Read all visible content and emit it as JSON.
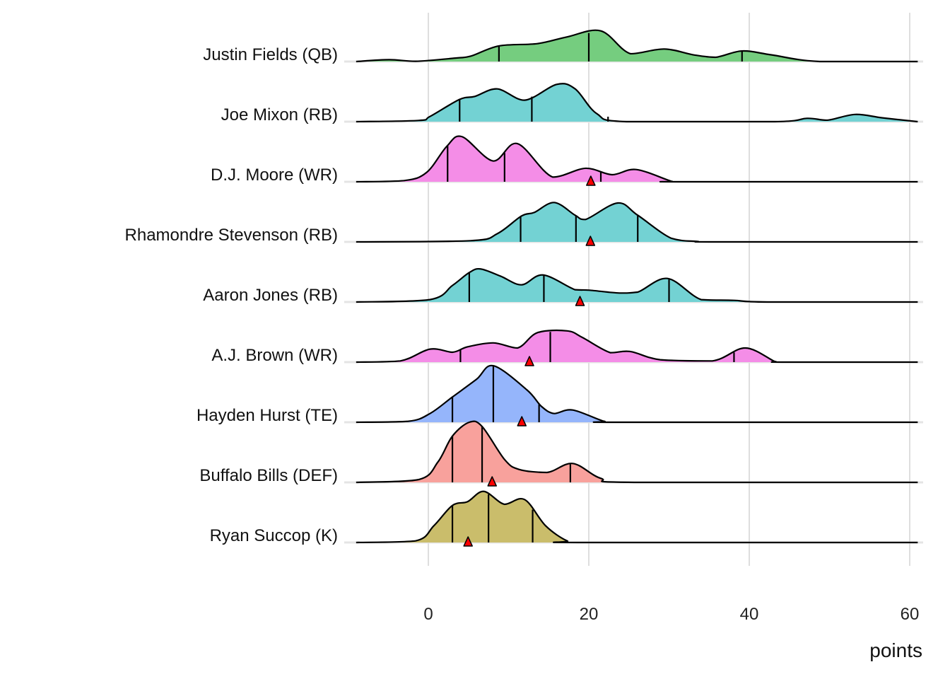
{
  "chart_data": {
    "type": "ridgeline",
    "xlabel": "points",
    "ylabel": "",
    "xlim": [
      -9,
      61
    ],
    "xticks": [
      0,
      20,
      40,
      60
    ],
    "grid": true,
    "legend": "none",
    "marker_color": "#FF0000",
    "series": [
      {
        "name": "Justin Fields (QB)",
        "color": "#75CD7F",
        "density": [
          [
            -9,
            0
          ],
          [
            -4.9,
            0.031
          ],
          [
            -1.6,
            0.004
          ],
          [
            3.5,
            0.059
          ],
          [
            5.3,
            0.09
          ],
          [
            8.8,
            0.26
          ],
          [
            13.6,
            0.298
          ],
          [
            17.3,
            0.41
          ],
          [
            21.5,
            0.51
          ],
          [
            25.2,
            0.13
          ],
          [
            29.4,
            0.208
          ],
          [
            33.1,
            0.11
          ],
          [
            35.8,
            0.071
          ],
          [
            39.1,
            0.176
          ],
          [
            42.8,
            0.11
          ],
          [
            48.8,
            0
          ],
          [
            61,
            0
          ]
        ],
        "quantiles": [
          8.8,
          20.0,
          39.1
        ],
        "marker": null
      },
      {
        "name": "Joe Mixon (RB)",
        "color": "#73D2D3",
        "density": [
          [
            -9,
            0
          ],
          [
            -1.2,
            0.02
          ],
          [
            0.2,
            0.086
          ],
          [
            3.9,
            0.37
          ],
          [
            5.8,
            0.42
          ],
          [
            8.6,
            0.545
          ],
          [
            12.0,
            0.357
          ],
          [
            16.0,
            0.62
          ],
          [
            18.3,
            0.545
          ],
          [
            21.0,
            0.133
          ],
          [
            24.7,
            0
          ],
          [
            43.2,
            0
          ],
          [
            47.2,
            0.055
          ],
          [
            49.7,
            0.024
          ],
          [
            53.2,
            0.12
          ],
          [
            56.6,
            0.063
          ],
          [
            61,
            0
          ]
        ],
        "quantiles": [
          3.9,
          12.9,
          22.4
        ],
        "marker": null
      },
      {
        "name": "D.J. Moore (WR)",
        "color": "#F48DE7",
        "density": [
          [
            -9,
            0
          ],
          [
            -3.0,
            0.02
          ],
          [
            -0.2,
            0.157
          ],
          [
            2.3,
            0.59
          ],
          [
            4.2,
            0.75
          ],
          [
            8.1,
            0.345
          ],
          [
            11.1,
            0.635
          ],
          [
            15.5,
            0.078
          ],
          [
            19.6,
            0.224
          ],
          [
            22.9,
            0.118
          ],
          [
            25.9,
            0.204
          ],
          [
            30.3,
            0.008
          ],
          [
            31.2,
            0
          ],
          [
            61,
            0
          ]
        ],
        "quantiles": [
          2.4,
          9.5,
          21.5
        ],
        "marker": 20.25
      },
      {
        "name": "Rhamondre Stevenson (RB)",
        "color": "#73D2D3",
        "density": [
          [
            -9,
            0
          ],
          [
            5.3,
            0.02
          ],
          [
            8.6,
            0.137
          ],
          [
            11.6,
            0.43
          ],
          [
            13.2,
            0.49
          ],
          [
            15.7,
            0.655
          ],
          [
            18.3,
            0.443
          ],
          [
            19.6,
            0.373
          ],
          [
            23.6,
            0.647
          ],
          [
            26.1,
            0.443
          ],
          [
            30.3,
            0.059
          ],
          [
            33.5,
            0.008
          ],
          [
            35.8,
            0
          ],
          [
            61,
            0
          ]
        ],
        "quantiles": [
          11.5,
          18.4,
          26.1
        ],
        "marker": 20.2
      },
      {
        "name": "Aaron Jones (RB)",
        "color": "#73D2D3",
        "density": [
          [
            -9,
            0
          ],
          [
            0.2,
            0.04
          ],
          [
            3.0,
            0.275
          ],
          [
            5.1,
            0.49
          ],
          [
            6.5,
            0.55
          ],
          [
            9.0,
            0.43
          ],
          [
            11.6,
            0.286
          ],
          [
            14.3,
            0.45
          ],
          [
            18.3,
            0.204
          ],
          [
            20.1,
            0.196
          ],
          [
            23.8,
            0.149
          ],
          [
            26.1,
            0.165
          ],
          [
            29.8,
            0.392
          ],
          [
            34.0,
            0.04
          ],
          [
            38.1,
            0.027
          ],
          [
            42.3,
            0
          ],
          [
            61,
            0
          ]
        ],
        "quantiles": [
          5.1,
          14.4,
          30.0
        ],
        "marker": 18.9
      },
      {
        "name": "A.J. Brown (WR)",
        "color": "#F48DE7",
        "density": [
          [
            -9,
            0
          ],
          [
            -3.5,
            0.02
          ],
          [
            0.2,
            0.216
          ],
          [
            3.0,
            0.165
          ],
          [
            4.9,
            0.255
          ],
          [
            8.1,
            0.32
          ],
          [
            11.1,
            0.235
          ],
          [
            13.6,
            0.49
          ],
          [
            17.3,
            0.52
          ],
          [
            19.2,
            0.41
          ],
          [
            22.7,
            0.157
          ],
          [
            25.2,
            0.176
          ],
          [
            28.9,
            0.04
          ],
          [
            35.4,
            0.02
          ],
          [
            39.5,
            0.235
          ],
          [
            43.2,
            0.01
          ],
          [
            44.2,
            0
          ],
          [
            61,
            0
          ]
        ],
        "quantiles": [
          4.0,
          15.2,
          38.1
        ],
        "marker": 12.6
      },
      {
        "name": "Hayden Hurst (TE)",
        "color": "#95B5FB",
        "density": [
          [
            -9,
            0
          ],
          [
            -2.5,
            0.016
          ],
          [
            0.2,
            0.145
          ],
          [
            3.0,
            0.42
          ],
          [
            6.0,
            0.714
          ],
          [
            8.1,
            0.94
          ],
          [
            12.3,
            0.537
          ],
          [
            14.1,
            0.263
          ],
          [
            15.7,
            0.145
          ],
          [
            18.0,
            0.204
          ],
          [
            21.9,
            0.016
          ],
          [
            23.8,
            0
          ],
          [
            61,
            0
          ]
        ],
        "quantiles": [
          3.0,
          8.1,
          13.8
        ],
        "marker": 11.65
      },
      {
        "name": "Buffalo Bills (DEF)",
        "color": "#F8A19C",
        "density": [
          [
            -9,
            0
          ],
          [
            -1.2,
            0.047
          ],
          [
            1.2,
            0.34
          ],
          [
            3.0,
            0.77
          ],
          [
            5.1,
            1.0
          ],
          [
            6.7,
            0.93
          ],
          [
            9.5,
            0.38
          ],
          [
            11.3,
            0.216
          ],
          [
            14.8,
            0.165
          ],
          [
            18.0,
            0.314
          ],
          [
            21.5,
            0.067
          ],
          [
            25.7,
            0
          ],
          [
            61,
            0
          ]
        ],
        "quantiles": [
          3.0,
          6.7,
          17.7
        ],
        "marker": 7.95
      },
      {
        "name": "Ryan Succop (K)",
        "color": "#CABD6B",
        "density": [
          [
            -9,
            0
          ],
          [
            -1.6,
            0.027
          ],
          [
            0.7,
            0.28
          ],
          [
            3.0,
            0.616
          ],
          [
            4.9,
            0.68
          ],
          [
            6.9,
            0.85
          ],
          [
            9.5,
            0.635
          ],
          [
            12.0,
            0.714
          ],
          [
            14.6,
            0.28
          ],
          [
            17.3,
            0.027
          ],
          [
            19.2,
            0
          ],
          [
            61,
            0
          ]
        ],
        "quantiles": [
          3.0,
          7.5,
          13.0
        ],
        "marker": 4.95
      }
    ]
  }
}
